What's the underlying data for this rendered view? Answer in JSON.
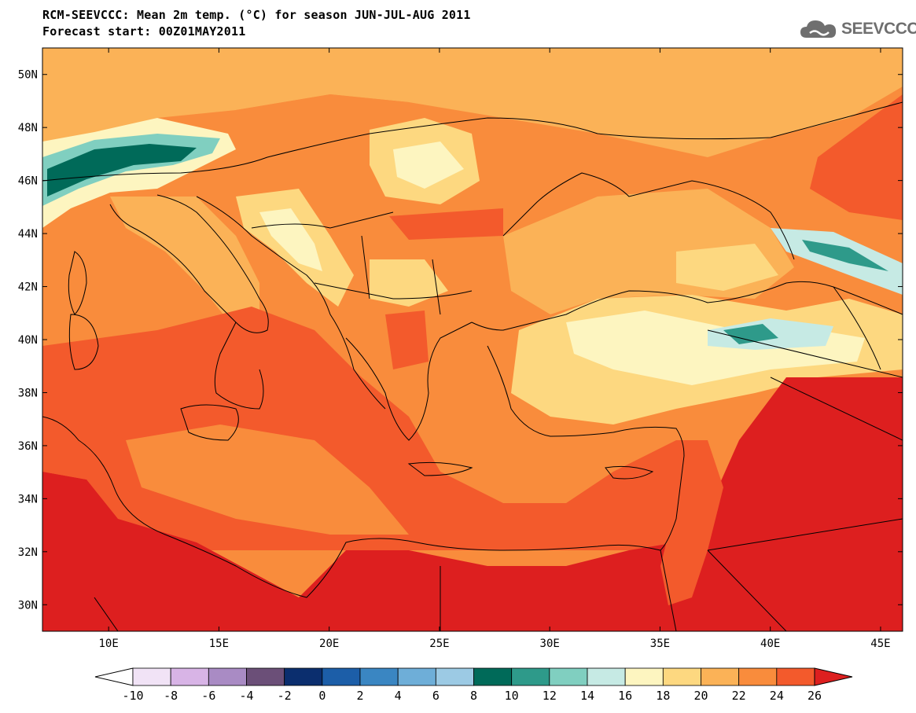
{
  "header": {
    "title_line1": "RCM-SEEVCCC: Mean 2m temp. (°C) for season JUN-JUL-AUG 2011",
    "title_line2": "Forecast start: 00Z01MAY2011",
    "logo_text": "SEEVCCC"
  },
  "map": {
    "lon_range": [
      7,
      46
    ],
    "lat_range": [
      29,
      51
    ],
    "lon_ticks": [
      "10E",
      "15E",
      "20E",
      "25E",
      "30E",
      "35E",
      "40E",
      "45E"
    ],
    "lat_ticks": [
      "30N",
      "32N",
      "34N",
      "36N",
      "38N",
      "40N",
      "42N",
      "44N",
      "46N",
      "48N",
      "50N"
    ],
    "field_description_colors": {
      "sea_background": "#fb9b4c",
      "hot_south": "#dd1f1f"
    }
  },
  "colorbar": {
    "labels": [
      "-10",
      "-8",
      "-6",
      "-4",
      "-2",
      "0",
      "2",
      "4",
      "6",
      "8",
      "10",
      "12",
      "14",
      "16",
      "18",
      "20",
      "22",
      "24",
      "26"
    ],
    "colors": [
      "#f1e3f6",
      "#d8b4e6",
      "#a98bc4",
      "#6b4f78",
      "#0b2e6e",
      "#1c5ea8",
      "#3a86c2",
      "#6eaed8",
      "#9ccae4",
      "#006a59",
      "#2e9a8a",
      "#80cfc0",
      "#c6eae4",
      "#fdf5c0",
      "#fdd880",
      "#fbb257",
      "#f98c3c",
      "#f35a2c"
    ],
    "under_color": "#ffffff",
    "over_color": "#dd1f1f"
  }
}
